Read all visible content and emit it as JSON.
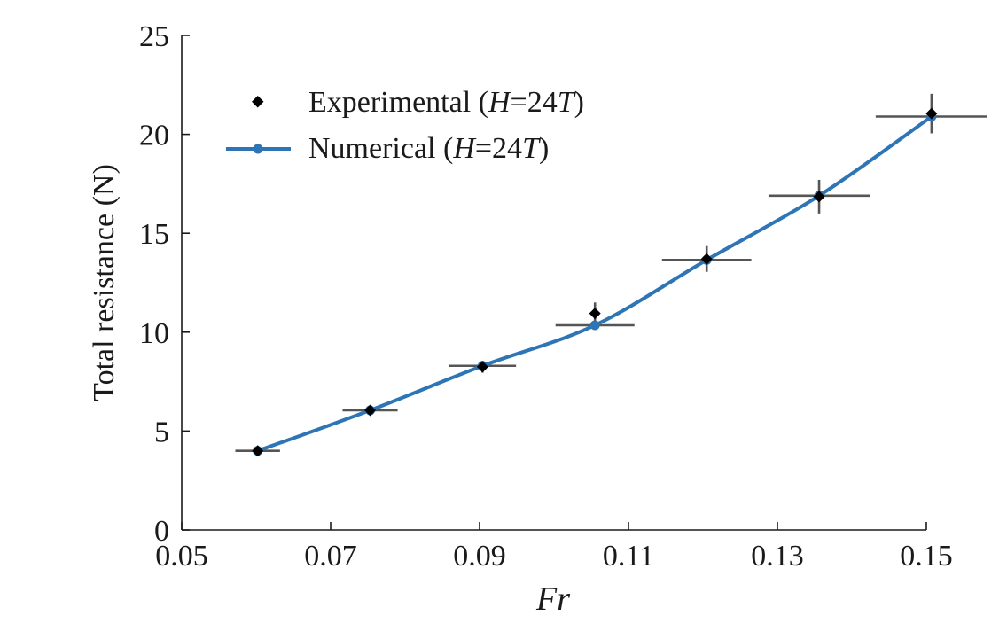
{
  "chart_data": {
    "type": "scatter",
    "xlabel": "Fr",
    "ylabel": "Total resistance (N)",
    "xlim": [
      0.05,
      0.15
    ],
    "ylim": [
      0,
      25
    ],
    "xticks": [
      0.05,
      0.07,
      0.09,
      0.11,
      0.13,
      0.15
    ],
    "xtick_labels": [
      "0.05",
      "0.07",
      "0.09",
      "0.11",
      "0.13",
      "0.15"
    ],
    "yticks": [
      0,
      5,
      10,
      15,
      20,
      25
    ],
    "ytick_labels": [
      "0",
      "5",
      "10",
      "15",
      "20",
      "25"
    ],
    "grid": false,
    "legend_position": "top-left",
    "series": [
      {
        "name": "Experimental",
        "label_parts": [
          "Experimental (",
          "H",
          "=24",
          "T",
          ")"
        ],
        "kind": "scatter",
        "marker": "diamond",
        "color": "#000000",
        "x": [
          0.0602,
          0.0753,
          0.0904,
          0.1055,
          0.1205,
          0.1356,
          0.1507
        ],
        "y": [
          4.0,
          6.05,
          8.25,
          10.95,
          13.7,
          16.85,
          21.05
        ],
        "y_err": [
          0.0,
          0.1,
          0.3,
          0.55,
          0.65,
          0.85,
          1.0
        ],
        "x_err": [
          0.003,
          0.0037,
          0.0045,
          0.0053,
          0.006,
          0.0068,
          0.0075
        ]
      },
      {
        "name": "Numerical",
        "label_parts": [
          "Numerical (",
          "H",
          "=24",
          "T",
          ")"
        ],
        "kind": "line",
        "marker": "circle",
        "color": "#2e75b6",
        "x": [
          0.0602,
          0.0753,
          0.0904,
          0.1055,
          0.1205,
          0.1356,
          0.1507
        ],
        "y": [
          4.0,
          6.05,
          8.3,
          10.35,
          13.65,
          16.9,
          20.9
        ]
      }
    ]
  }
}
